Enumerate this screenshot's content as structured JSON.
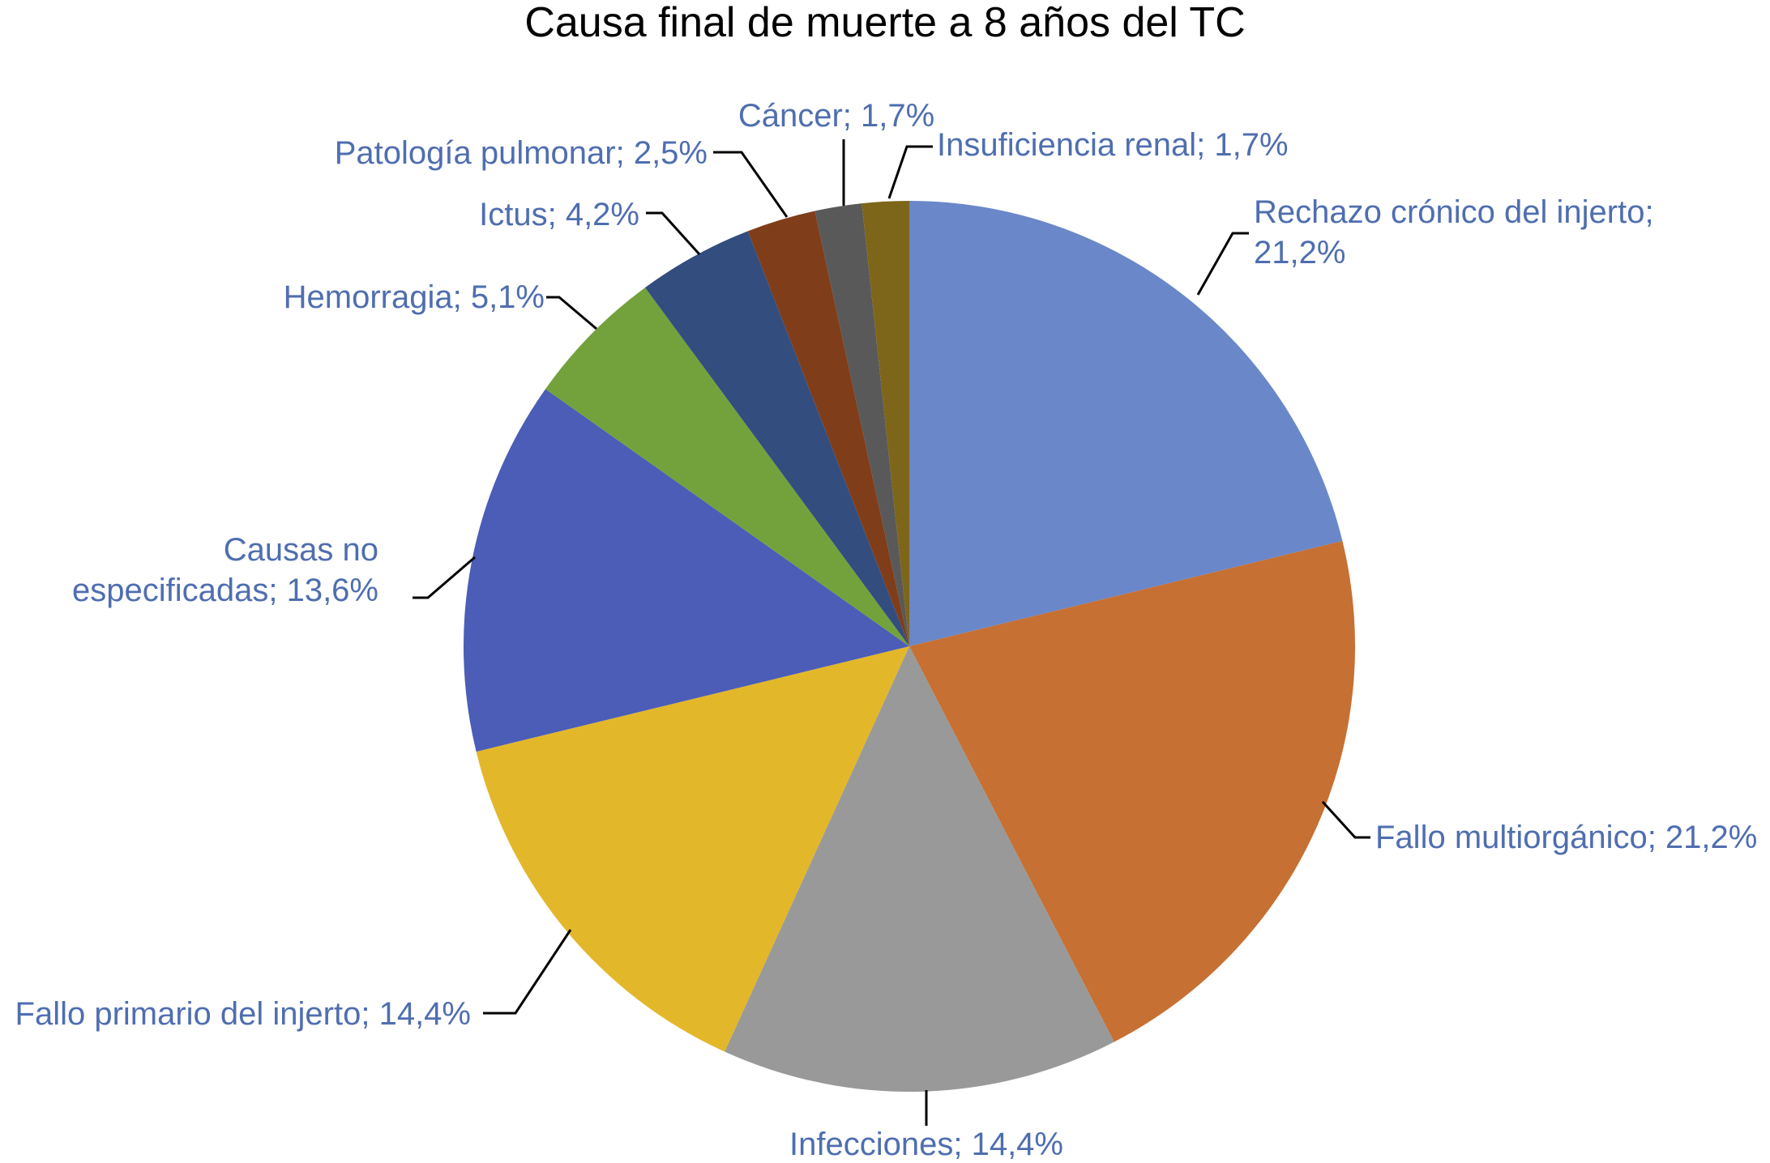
{
  "chart_data": {
    "type": "pie",
    "title": "Causa final de muerte a 8 años del TC",
    "start_angle_deg": 0,
    "direction": "clockwise",
    "slices": [
      {
        "label": [
          "Rechazo crónico del injerto;",
          "21,2%"
        ],
        "value": 21.2,
        "color": "#6a87c9"
      },
      {
        "label": [
          "Fallo multiorgánico; 21,2%"
        ],
        "value": 21.2,
        "color": "#c67033"
      },
      {
        "label": [
          "Infecciones; 14,4%"
        ],
        "value": 14.4,
        "color": "#999999"
      },
      {
        "label": [
          "Fallo primario del injerto; 14,4%"
        ],
        "value": 14.4,
        "color": "#e3b72a"
      },
      {
        "label": [
          "Causas no",
          "especificadas; 13,6%"
        ],
        "value": 13.6,
        "color": "#4b5db6"
      },
      {
        "label": [
          "Hemorragia; 5,1%"
        ],
        "value": 5.1,
        "color": "#73a23c"
      },
      {
        "label": [
          "Ictus; 4,2%"
        ],
        "value": 4.2,
        "color": "#334d7f"
      },
      {
        "label": [
          "Patología pulmonar; 2,5%"
        ],
        "value": 2.5,
        "color": "#7f3d1a"
      },
      {
        "label": [
          "Cáncer; 1,7%"
        ],
        "value": 1.7,
        "color": "#595959"
      },
      {
        "label": [
          "Insuficiencia renal; 1,7%"
        ],
        "value": 1.7,
        "color": "#7d6619"
      }
    ]
  }
}
